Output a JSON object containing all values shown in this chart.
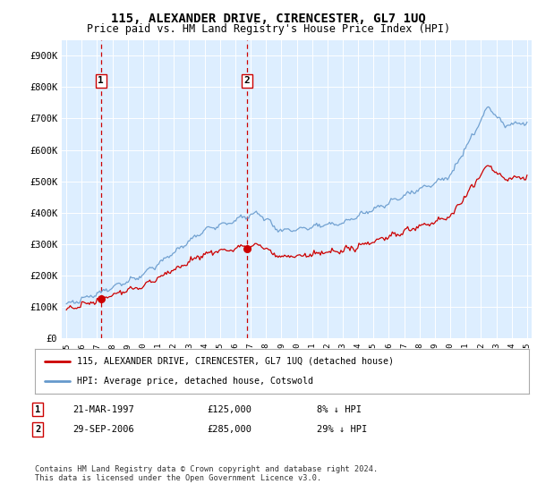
{
  "title": "115, ALEXANDER DRIVE, CIRENCESTER, GL7 1UQ",
  "subtitle": "Price paid vs. HM Land Registry's House Price Index (HPI)",
  "ylim": [
    0,
    950000
  ],
  "yticks": [
    0,
    100000,
    200000,
    300000,
    400000,
    500000,
    600000,
    700000,
    800000,
    900000
  ],
  "ytick_labels": [
    "£0",
    "£100K",
    "£200K",
    "£300K",
    "£400K",
    "£500K",
    "£600K",
    "£700K",
    "£800K",
    "£900K"
  ],
  "bg_color": "#ddeeff",
  "hpi_color": "#6699cc",
  "price_color": "#cc0000",
  "sale1_year": 1997.25,
  "sale1_value": 125000,
  "sale2_year": 2006.75,
  "sale2_value": 285000,
  "legend_line1": "115, ALEXANDER DRIVE, CIRENCESTER, GL7 1UQ (detached house)",
  "legend_line2": "HPI: Average price, detached house, Cotswold",
  "footer": "Contains HM Land Registry data © Crown copyright and database right 2024.\nThis data is licensed under the Open Government Licence v3.0.",
  "start_year": 1995,
  "end_year": 2025
}
